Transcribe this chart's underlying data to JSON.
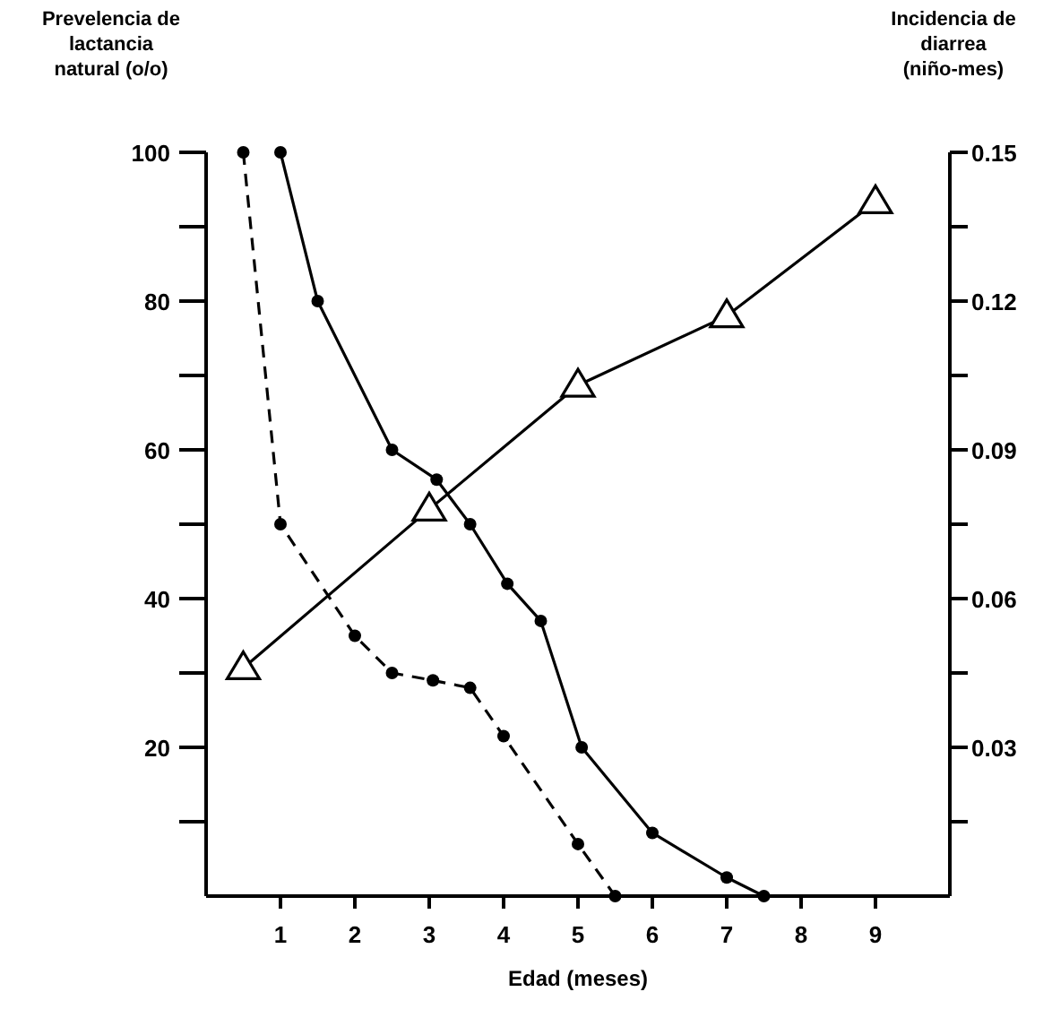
{
  "chart_data": {
    "type": "line",
    "xlabel": "Edad (meses)",
    "ylabel": "Prevelencia de lactancia natural (o/o)",
    "y2label": "Incidencia de diarrea (niño-mes)",
    "xlim": [
      0,
      10
    ],
    "xticks": [
      1,
      2,
      3,
      4,
      5,
      6,
      7,
      8,
      9
    ],
    "ylim": [
      0,
      100
    ],
    "yticks": [
      {
        "value": 10,
        "label": null
      },
      20,
      {
        "value": 30,
        "label": null
      },
      40,
      {
        "value": 50,
        "label": null
      },
      60,
      {
        "value": 70,
        "label": null
      },
      80,
      {
        "value": 90,
        "label": null
      },
      100
    ],
    "y2lim": [
      0,
      0.15
    ],
    "y2ticks": [
      {
        "value": 0.015,
        "label": null
      },
      0.03,
      {
        "value": 0.045,
        "label": null
      },
      0.06,
      {
        "value": 0.075,
        "label": null
      },
      0.09,
      {
        "value": 0.105,
        "label": null
      },
      0.12,
      {
        "value": 0.135,
        "label": null
      },
      0.15
    ],
    "grid": false,
    "series": [
      {
        "color": "#000000",
        "x": [
          1,
          1.5,
          2.5,
          3.1,
          3.55,
          4.05,
          4.5,
          5.05,
          6,
          7,
          7.5
        ],
        "values": [
          100,
          80,
          60,
          56,
          50,
          42,
          37,
          20,
          8.5,
          2.5,
          0
        ],
        "marker": "circle",
        "line_style": "solid"
      },
      {
        "color": "#000000",
        "x": [
          0.5,
          1,
          2,
          2.5,
          3.05,
          3.55,
          4,
          5,
          5.5
        ],
        "values": [
          100,
          50,
          35,
          30,
          29,
          28,
          21.5,
          7,
          0
        ],
        "marker": "circle",
        "line_style": "dashed"
      },
      {
        "color": "#000000",
        "axis": "y2",
        "x": [
          0.5,
          3,
          5,
          7,
          9
        ],
        "values": [
          0.046,
          0.078,
          0.103,
          0.117,
          0.14
        ],
        "marker": "triangle",
        "line_style": "solid"
      }
    ]
  }
}
